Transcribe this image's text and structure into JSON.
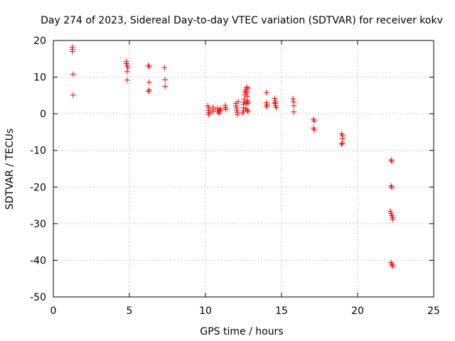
{
  "chart_data": {
    "type": "scatter",
    "title": "Day 274 of 2023, Sidereal Day-to-day VTEC variation (SDTVAR) for receiver kokv",
    "xlabel": "GPS time / hours",
    "ylabel": "SDTVAR / TECUs",
    "xlim": [
      0,
      25
    ],
    "ylim": [
      -50,
      20
    ],
    "xticks": [
      0,
      5,
      10,
      15,
      20,
      25
    ],
    "yticks": [
      -50,
      -40,
      -30,
      -20,
      -10,
      0,
      10,
      20
    ],
    "grid": true,
    "marker": "+",
    "colors": {
      "points": "#ff0000",
      "grid": "#a0a0a0",
      "axes": "#000000"
    },
    "series": [
      {
        "name": "SDTVAR",
        "points": [
          [
            1.25,
            18.2
          ],
          [
            1.25,
            17.6
          ],
          [
            1.25,
            17.0
          ],
          [
            1.3,
            10.8
          ],
          [
            1.3,
            5.1
          ],
          [
            4.8,
            14.3
          ],
          [
            4.8,
            13.7
          ],
          [
            4.85,
            13.2
          ],
          [
            4.85,
            11.5
          ],
          [
            4.85,
            9.2
          ],
          [
            4.9,
            12.6
          ],
          [
            6.25,
            13.2
          ],
          [
            6.3,
            12.8
          ],
          [
            6.3,
            8.6
          ],
          [
            6.3,
            6.5
          ],
          [
            6.25,
            6.1
          ],
          [
            7.3,
            12.6
          ],
          [
            7.35,
            9.3
          ],
          [
            7.35,
            7.5
          ],
          [
            10.15,
            2.2
          ],
          [
            10.2,
            1.6
          ],
          [
            10.2,
            0.9
          ],
          [
            10.25,
            0.3
          ],
          [
            10.2,
            -0.2
          ],
          [
            10.5,
            1.8
          ],
          [
            10.5,
            1.2
          ],
          [
            10.5,
            0.6
          ],
          [
            10.8,
            1.5
          ],
          [
            10.8,
            1.0
          ],
          [
            10.85,
            0.5
          ],
          [
            10.9,
            0.1
          ],
          [
            10.95,
            0.9
          ],
          [
            11.0,
            1.3
          ],
          [
            11.3,
            2.3
          ],
          [
            11.3,
            1.7
          ],
          [
            11.35,
            1.2
          ],
          [
            12.0,
            2.8
          ],
          [
            12.0,
            2.2
          ],
          [
            12.05,
            1.6
          ],
          [
            12.05,
            1.0
          ],
          [
            12.1,
            0.4
          ],
          [
            12.1,
            -0.2
          ],
          [
            12.15,
            3.3
          ],
          [
            12.45,
            0.2
          ],
          [
            12.5,
            0.8
          ],
          [
            12.5,
            1.6
          ],
          [
            12.5,
            2.6
          ],
          [
            12.55,
            3.2
          ],
          [
            12.55,
            4.0
          ],
          [
            12.6,
            5.2
          ],
          [
            12.6,
            6.0
          ],
          [
            12.65,
            6.6
          ],
          [
            12.7,
            7.2
          ],
          [
            12.7,
            5.8
          ],
          [
            12.75,
            4.8
          ],
          [
            12.75,
            3.6
          ],
          [
            12.7,
            2.8
          ],
          [
            12.75,
            1.0
          ],
          [
            12.8,
            0.6
          ],
          [
            12.8,
            3.0
          ],
          [
            12.8,
            7.0
          ],
          [
            12.65,
            1.4
          ],
          [
            14.0,
            5.8
          ],
          [
            14.0,
            3.0
          ],
          [
            14.05,
            2.4
          ],
          [
            14.0,
            2.0
          ],
          [
            14.55,
            4.2
          ],
          [
            14.6,
            3.5
          ],
          [
            14.6,
            2.8
          ],
          [
            14.6,
            2.2
          ],
          [
            14.65,
            1.7
          ],
          [
            14.55,
            3.0
          ],
          [
            15.75,
            4.1
          ],
          [
            15.8,
            3.2
          ],
          [
            15.8,
            2.2
          ],
          [
            15.8,
            0.5
          ],
          [
            17.1,
            -1.5
          ],
          [
            17.15,
            -2.0
          ],
          [
            17.1,
            -3.9
          ],
          [
            17.15,
            -4.4
          ],
          [
            18.95,
            -5.5
          ],
          [
            19.0,
            -6.0
          ],
          [
            19.0,
            -6.8
          ],
          [
            19.0,
            -8.0
          ],
          [
            18.95,
            -8.3
          ],
          [
            22.2,
            -12.6
          ],
          [
            22.25,
            -13.0
          ],
          [
            22.2,
            -19.7
          ],
          [
            22.25,
            -20.1
          ],
          [
            22.15,
            -26.6
          ],
          [
            22.2,
            -27.2
          ],
          [
            22.25,
            -27.8
          ],
          [
            22.3,
            -28.3
          ],
          [
            22.3,
            -28.8
          ],
          [
            22.2,
            -40.6
          ],
          [
            22.25,
            -41.1
          ],
          [
            22.3,
            -41.6
          ]
        ]
      }
    ]
  }
}
